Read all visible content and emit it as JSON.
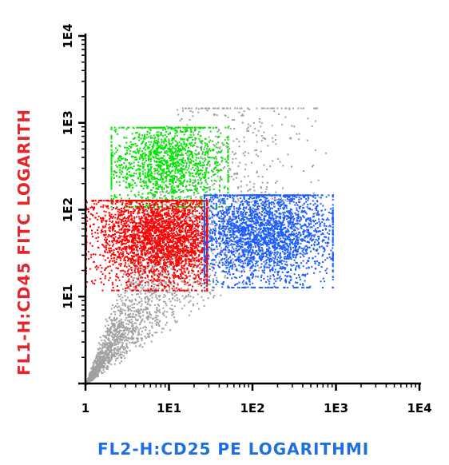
{
  "chart_data": {
    "type": "scatter",
    "title": "",
    "xlabel": "FL2-H:CD25 PE LOGARITHMI",
    "ylabel": "FL1-H:CD45 FITC LOGARITH",
    "x_scale": "log",
    "y_scale": "log",
    "xlim": [
      1,
      10000
    ],
    "ylim": [
      1,
      10000
    ],
    "x_ticks": [
      "1",
      "1E1",
      "1E2",
      "1E3",
      "1E4"
    ],
    "y_ticks": [
      "1E1",
      "1E2",
      "1E3",
      "1E4"
    ],
    "grid": false,
    "colors": {
      "axis": "#000000",
      "xlabel": "#1e6fe0",
      "ylabel": "#e4262a"
    },
    "populations": [
      {
        "color": "#a0a0a0",
        "x_range": [
          1,
          900
        ],
        "y_range": [
          1,
          1500
        ],
        "density": "background",
        "points": 2600
      },
      {
        "color": "#00e400",
        "x_range": [
          2,
          50
        ],
        "y_range": [
          110,
          900
        ],
        "center": [
          9,
          350
        ],
        "points": 1500
      },
      {
        "color": "#ff0000",
        "x_range": [
          1,
          28
        ],
        "y_range": [
          12,
          130
        ],
        "center": [
          8,
          50
        ],
        "points": 3200
      },
      {
        "color": "#1a5cff",
        "x_range": [
          26,
          900
        ],
        "y_range": [
          13,
          150
        ],
        "center": [
          140,
          55
        ],
        "points": 2800
      }
    ]
  }
}
